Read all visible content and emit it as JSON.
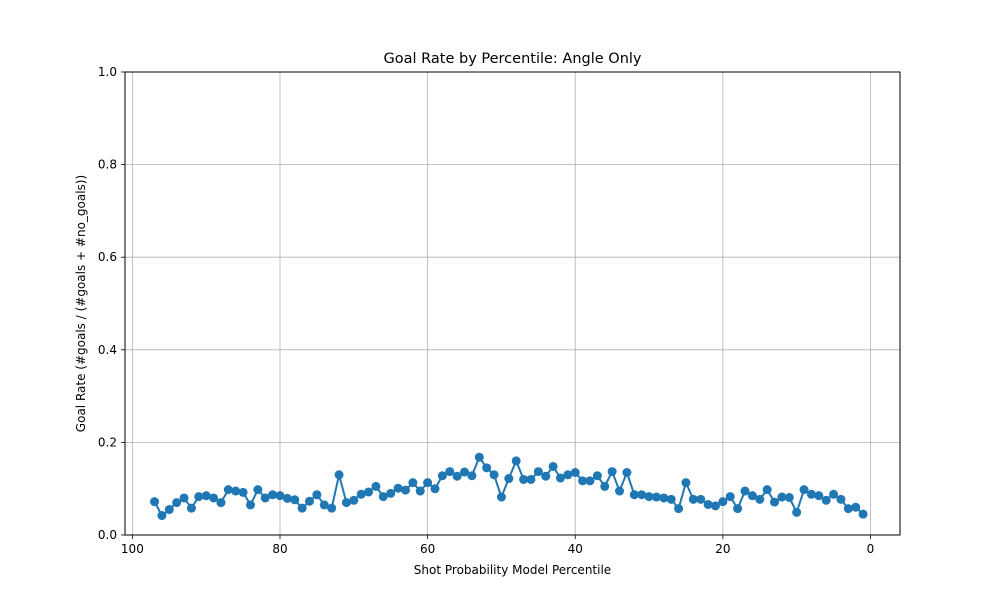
{
  "chart_data": {
    "type": "line",
    "title": "Goal Rate by Percentile: Angle Only",
    "xlabel": "Shot Probability Model Percentile",
    "ylabel": "Goal Rate (#goals / (#goals + #no_goals))",
    "xlim": [
      101,
      -4
    ],
    "ylim": [
      0,
      1
    ],
    "x_reversed": true,
    "grid": true,
    "xticks": [
      100,
      80,
      60,
      40,
      20,
      0
    ],
    "yticks": [
      0.0,
      0.2,
      0.4,
      0.6,
      0.8,
      1.0
    ],
    "xtick_labels": [
      "100",
      "80",
      "60",
      "40",
      "20",
      "0"
    ],
    "ytick_labels": [
      "0.0",
      "0.2",
      "0.4",
      "0.6",
      "0.8",
      "1.0"
    ],
    "colors": {
      "series": "#1f77b4",
      "grid": "#b0b0b0"
    },
    "series": [
      {
        "marker": "circle",
        "x": [
          97,
          96,
          95,
          94,
          93,
          92,
          91,
          90,
          89,
          88,
          87,
          86,
          85,
          84,
          83,
          82,
          81,
          80,
          79,
          78,
          77,
          76,
          75,
          74,
          73,
          72,
          71,
          70,
          69,
          68,
          67,
          66,
          65,
          64,
          63,
          62,
          61,
          60,
          59,
          58,
          57,
          56,
          55,
          54,
          53,
          52,
          51,
          50,
          49,
          48,
          47,
          46,
          45,
          44,
          43,
          42,
          41,
          40,
          39,
          38,
          37,
          36,
          35,
          34,
          33,
          32,
          31,
          30,
          29,
          28,
          27,
          26,
          25,
          24,
          23,
          22,
          21,
          20,
          19,
          18,
          17,
          16,
          15,
          14,
          13,
          12,
          11,
          10,
          9,
          8,
          7,
          6,
          5,
          4,
          3,
          2,
          1
        ],
        "y": [
          0.072,
          0.042,
          0.055,
          0.07,
          0.08,
          0.058,
          0.083,
          0.085,
          0.08,
          0.07,
          0.098,
          0.095,
          0.092,
          0.065,
          0.098,
          0.08,
          0.087,
          0.085,
          0.079,
          0.076,
          0.058,
          0.073,
          0.087,
          0.065,
          0.058,
          0.13,
          0.07,
          0.075,
          0.088,
          0.093,
          0.105,
          0.083,
          0.09,
          0.101,
          0.097,
          0.113,
          0.095,
          0.113,
          0.1,
          0.128,
          0.137,
          0.127,
          0.136,
          0.128,
          0.168,
          0.145,
          0.13,
          0.082,
          0.122,
          0.16,
          0.12,
          0.12,
          0.137,
          0.127,
          0.148,
          0.123,
          0.13,
          0.135,
          0.117,
          0.117,
          0.128,
          0.105,
          0.137,
          0.095,
          0.135,
          0.087,
          0.087,
          0.083,
          0.082,
          0.08,
          0.077,
          0.057,
          0.113,
          0.077,
          0.077,
          0.066,
          0.063,
          0.072,
          0.083,
          0.057,
          0.095,
          0.085,
          0.077,
          0.098,
          0.071,
          0.082,
          0.081,
          0.049,
          0.098,
          0.088,
          0.085,
          0.075,
          0.088,
          0.077,
          0.057,
          0.06,
          0.045
        ]
      }
    ]
  }
}
